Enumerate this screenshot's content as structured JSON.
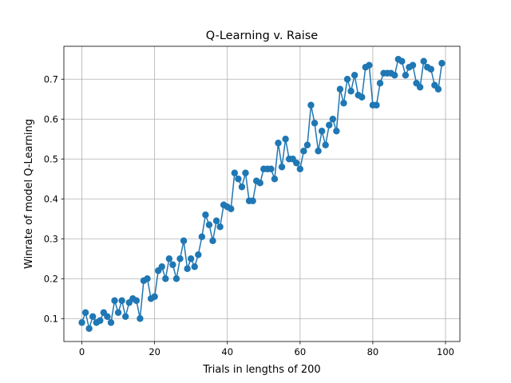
{
  "chart_data": {
    "type": "line",
    "title": "Q-Learning v. Raise",
    "xlabel": "Trials in lengths of 200",
    "ylabel": "Winrate of model Q-Learning",
    "xlim": [
      -4.95,
      103.95
    ],
    "ylim": [
      0.0425,
      0.7825
    ],
    "xticks": [
      0,
      20,
      40,
      60,
      80,
      100
    ],
    "yticks": [
      0.1,
      0.2,
      0.3,
      0.4,
      0.5,
      0.6,
      0.7
    ],
    "grid": true,
    "series": [
      {
        "color": "#1f77b4",
        "marker": "circle",
        "x": [
          0,
          1,
          2,
          3,
          4,
          5,
          6,
          7,
          8,
          9,
          10,
          11,
          12,
          13,
          14,
          15,
          16,
          17,
          18,
          19,
          20,
          21,
          22,
          23,
          24,
          25,
          26,
          27,
          28,
          29,
          30,
          31,
          32,
          33,
          34,
          35,
          36,
          37,
          38,
          39,
          40,
          41,
          42,
          43,
          44,
          45,
          46,
          47,
          48,
          49,
          50,
          51,
          52,
          53,
          54,
          55,
          56,
          57,
          58,
          59,
          60,
          61,
          62,
          63,
          64,
          65,
          66,
          67,
          68,
          69,
          70,
          71,
          72,
          73,
          74,
          75,
          76,
          77,
          78,
          79,
          80,
          81,
          82,
          83,
          84,
          85,
          86,
          87,
          88,
          89,
          90,
          91,
          92,
          93,
          94,
          95,
          96,
          97,
          98,
          99
        ],
        "y": [
          0.09,
          0.115,
          0.075,
          0.105,
          0.09,
          0.095,
          0.115,
          0.105,
          0.09,
          0.145,
          0.115,
          0.145,
          0.105,
          0.14,
          0.15,
          0.145,
          0.1,
          0.195,
          0.2,
          0.15,
          0.155,
          0.22,
          0.23,
          0.2,
          0.25,
          0.235,
          0.2,
          0.25,
          0.295,
          0.225,
          0.25,
          0.23,
          0.26,
          0.305,
          0.36,
          0.335,
          0.295,
          0.345,
          0.33,
          0.385,
          0.38,
          0.375,
          0.465,
          0.45,
          0.43,
          0.465,
          0.395,
          0.395,
          0.445,
          0.44,
          0.475,
          0.475,
          0.475,
          0.45,
          0.54,
          0.48,
          0.55,
          0.5,
          0.5,
          0.49,
          0.475,
          0.52,
          0.535,
          0.635,
          0.59,
          0.52,
          0.57,
          0.535,
          0.585,
          0.6,
          0.57,
          0.675,
          0.64,
          0.7,
          0.67,
          0.71,
          0.66,
          0.655,
          0.73,
          0.735,
          0.635,
          0.635,
          0.69,
          0.715,
          0.715,
          0.715,
          0.71,
          0.75,
          0.745,
          0.71,
          0.73,
          0.735,
          0.69,
          0.68,
          0.745,
          0.73,
          0.725,
          0.685,
          0.675,
          0.74
        ]
      }
    ]
  }
}
